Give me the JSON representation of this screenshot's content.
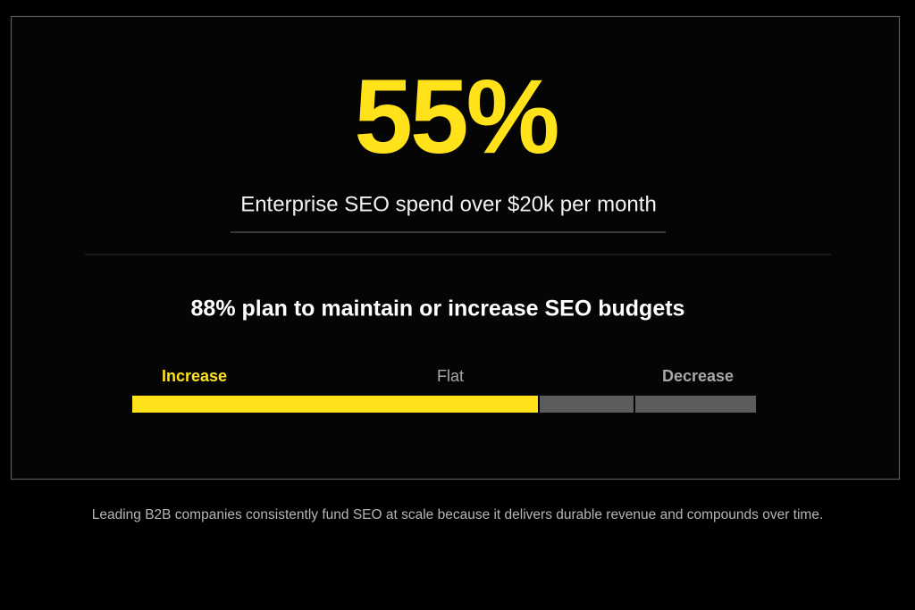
{
  "stat": {
    "value": "55%",
    "caption": "Enterprise SEO spend over $20k per month"
  },
  "budget": {
    "heading": "88% plan to maintain or increase SEO budgets",
    "labels": [
      "Increase",
      "Flat",
      "Decrease"
    ]
  },
  "footer": "Leading B2B companies consistently fund SEO at scale because it delivers durable revenue and compounds over time."
}
